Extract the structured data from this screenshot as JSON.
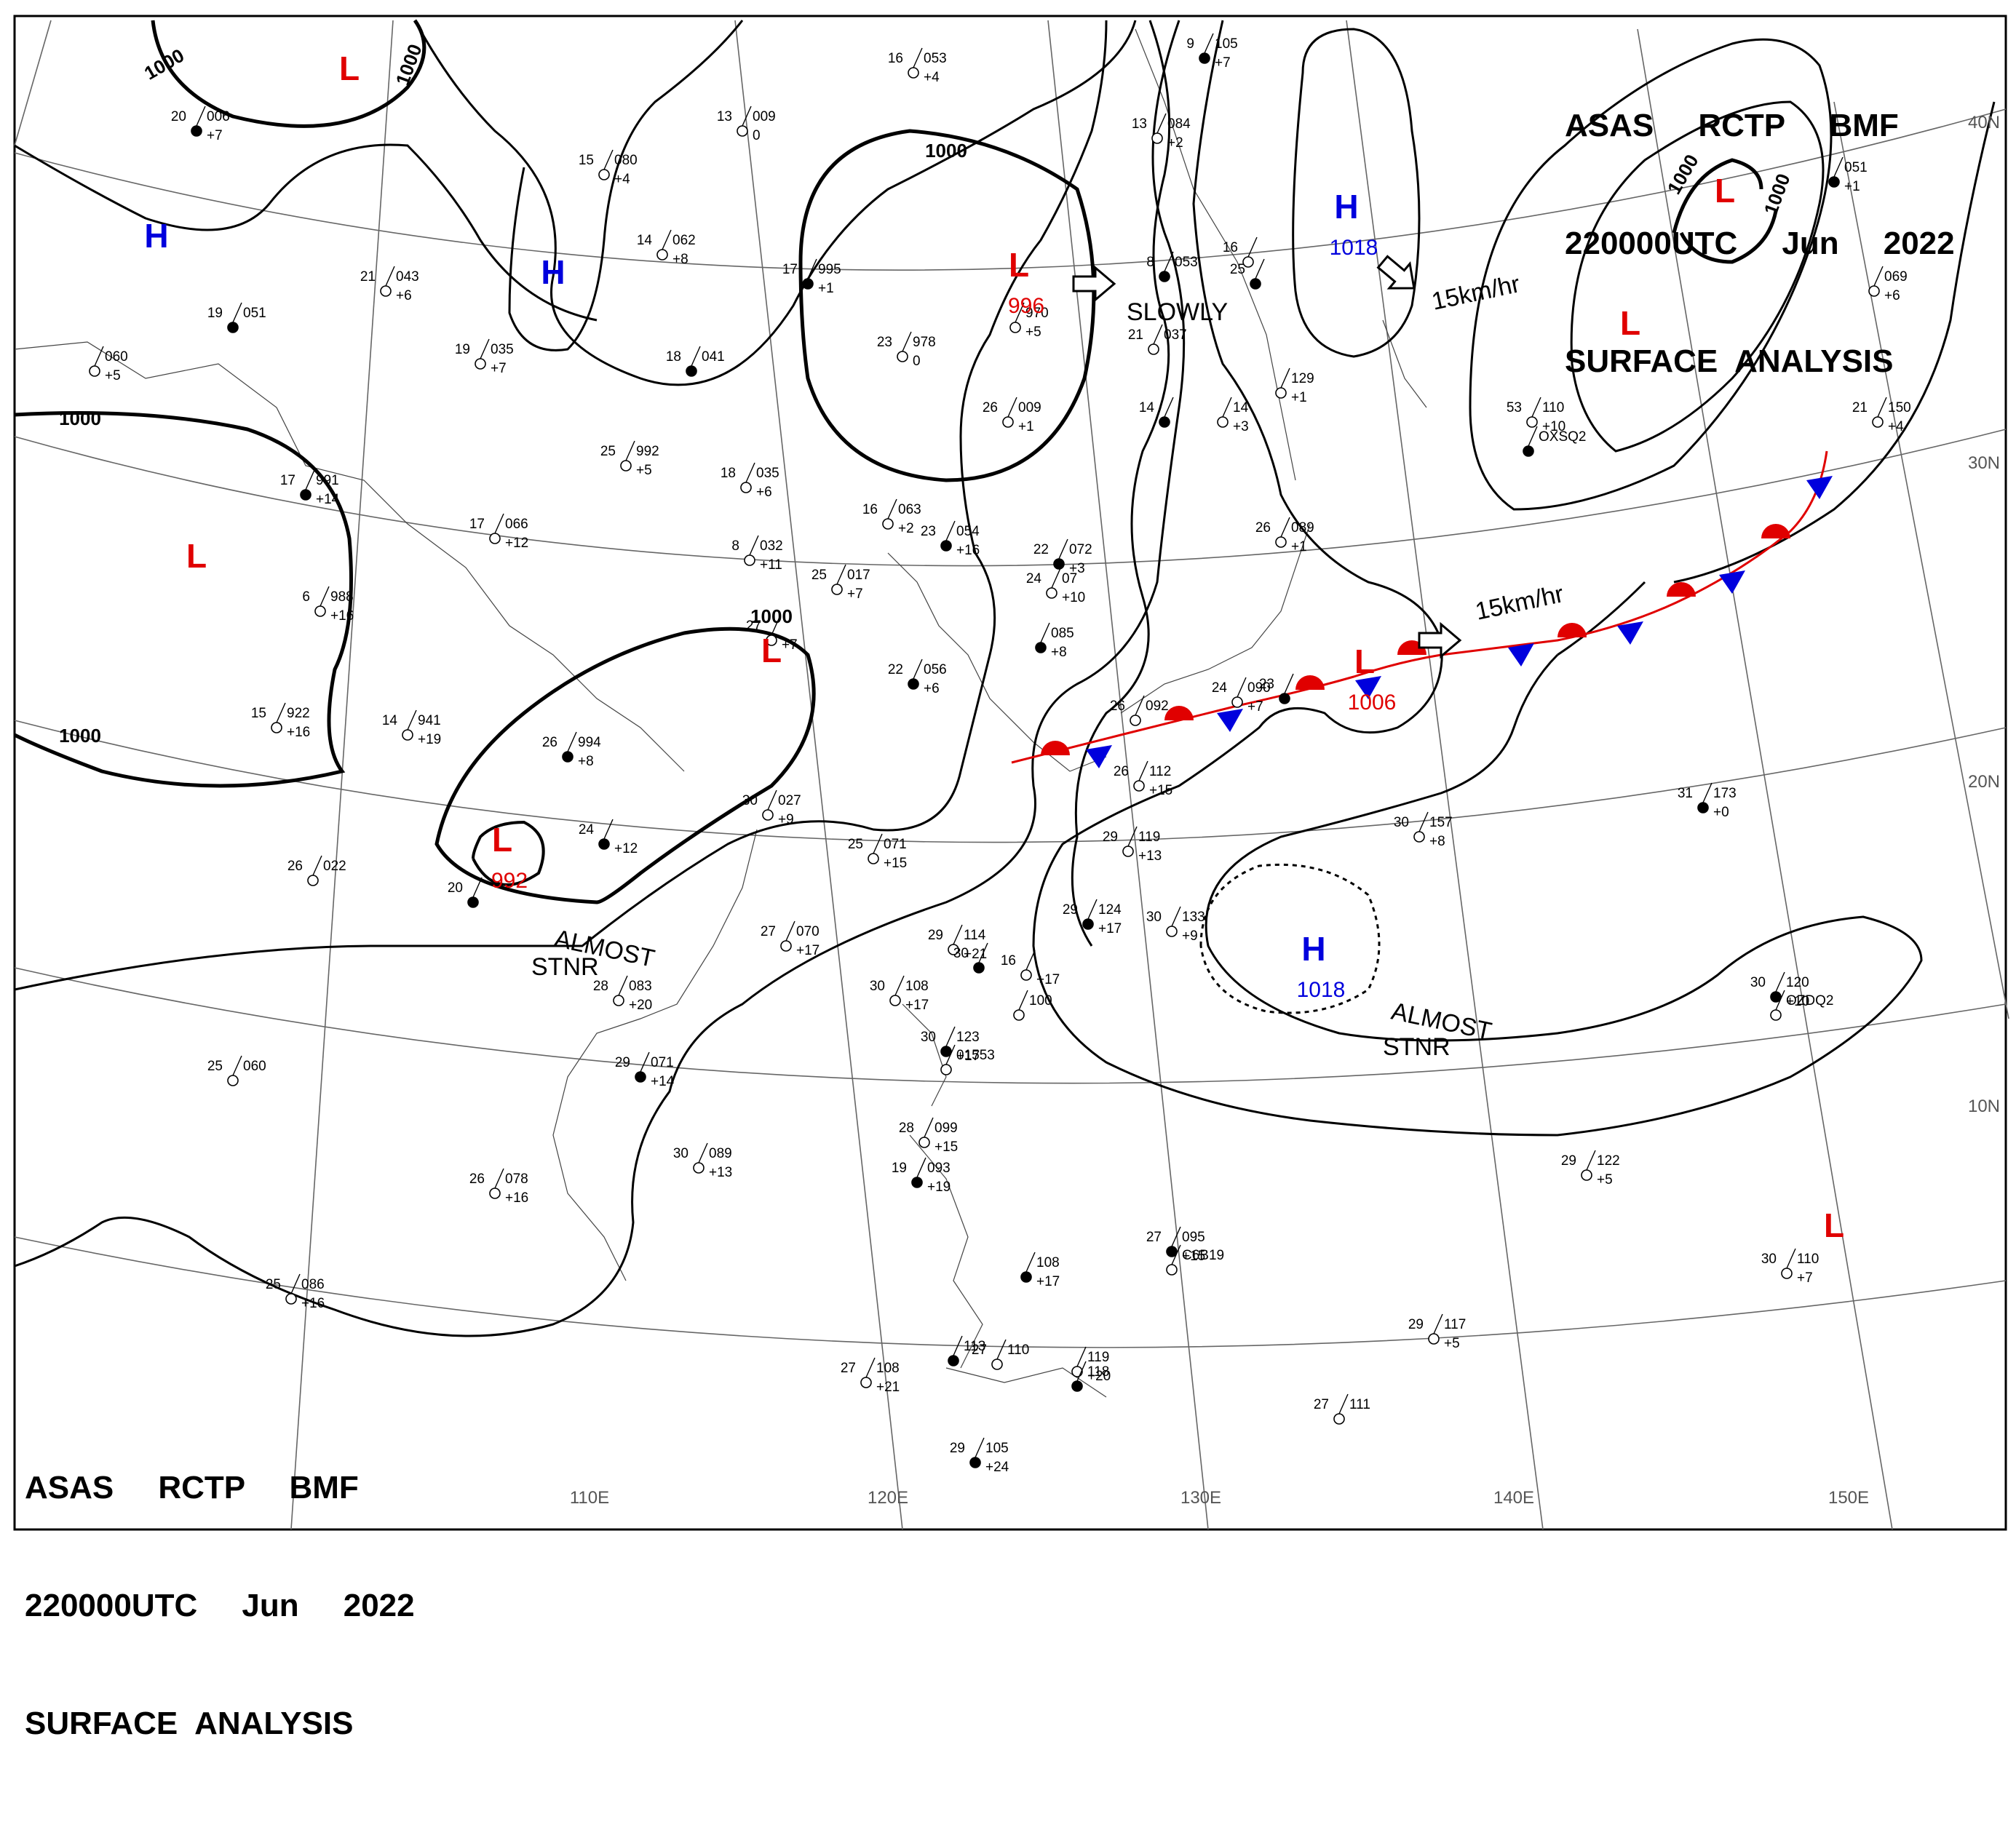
{
  "chart_title": {
    "line1": "ASAS     RCTP     BMF",
    "line2": "220000UTC     Jun     2022",
    "line3": "SURFACE  ANALYSIS"
  },
  "longitude_labels": [
    "110E",
    "120E",
    "130E",
    "140E",
    "150E"
  ],
  "latitude_labels": [
    "40N",
    "30N",
    "20N",
    "10N"
  ],
  "isobar_labels": [
    "1000",
    "1000",
    "1000",
    "1000",
    "1000",
    "1000",
    "1000",
    "1000"
  ],
  "pressure_centers": [
    {
      "type": "H",
      "value": ""
    },
    {
      "type": "H",
      "value": ""
    },
    {
      "type": "L",
      "value": ""
    },
    {
      "type": "L",
      "value": ""
    },
    {
      "type": "L",
      "value": "996"
    },
    {
      "type": "L",
      "value": ""
    },
    {
      "type": "L",
      "value": "992"
    },
    {
      "type": "H",
      "value": "1018"
    },
    {
      "type": "L",
      "value": ""
    },
    {
      "type": "L",
      "value": ""
    },
    {
      "type": "L",
      "value": "1006"
    },
    {
      "type": "H",
      "value": "1018"
    },
    {
      "type": "L",
      "value": ""
    }
  ],
  "annotations": [
    "SLOWLY",
    "15km/hr",
    "15km/hr",
    "ALMOST",
    "STNR",
    "ALMOST",
    "STNR"
  ],
  "front": {
    "type": "stationary",
    "colors": {
      "warm": "#e00000",
      "cold": "#0000dd"
    }
  },
  "colors": {
    "high": "#0000dd",
    "low": "#e00000",
    "isobar": "#000000",
    "grid": "#555555"
  },
  "stations": [
    {
      "t": "20",
      "p": "006",
      "tend": "+7"
    },
    {
      "t": "13",
      "p": "009",
      "tend": "0"
    },
    {
      "t": "16",
      "p": "053",
      "tend": "+4"
    },
    {
      "t": "9",
      "p": "105",
      "tend": "+7"
    },
    {
      "t": "15",
      "p": "080",
      "tend": "+4"
    },
    {
      "t": "14",
      "p": "062",
      "tend": "+8"
    },
    {
      "t": "17",
      "p": "995",
      "tend": "+1"
    },
    {
      "t": "13",
      "p": "084",
      "tend": "+2"
    },
    {
      "t": "21",
      "p": "043",
      "tend": "+6"
    },
    {
      "t": "19",
      "p": "051",
      "tend": ""
    },
    {
      "t": "",
      "p": "060",
      "tend": "+5"
    },
    {
      "t": "19",
      "p": "035",
      "tend": "+7"
    },
    {
      "t": "18",
      "p": "041",
      "tend": ""
    },
    {
      "t": "23",
      "p": "978",
      "tend": "0"
    },
    {
      "t": "",
      "p": "970",
      "tend": "+5"
    },
    {
      "t": "8",
      "p": "053",
      "tend": ""
    },
    {
      "t": "21",
      "p": "037",
      "tend": ""
    },
    {
      "t": "16",
      "p": "",
      "tend": ""
    },
    {
      "t": "25",
      "p": "",
      "tend": ""
    },
    {
      "t": "",
      "p": "129",
      "tend": "+1"
    },
    {
      "t": "25",
      "p": "992",
      "tend": "+5"
    },
    {
      "t": "17",
      "p": "991",
      "tend": "+14"
    },
    {
      "t": "18",
      "p": "035",
      "tend": "+6"
    },
    {
      "t": "26",
      "p": "009",
      "tend": "+1"
    },
    {
      "t": "14",
      "p": "",
      "tend": ""
    },
    {
      "t": "",
      "p": "14",
      "tend": "+3"
    },
    {
      "t": "53",
      "p": "110",
      "tend": "+10"
    },
    {
      "t": "",
      "p": "OXSQ2",
      "tend": ""
    },
    {
      "t": "21",
      "p": "150",
      "tend": "+4"
    },
    {
      "t": "",
      "p": "069",
      "tend": "+6"
    },
    {
      "t": "",
      "p": "051",
      "tend": "+1"
    },
    {
      "t": "17",
      "p": "066",
      "tend": "+12"
    },
    {
      "t": "16",
      "p": "063",
      "tend": "+2"
    },
    {
      "t": "23",
      "p": "054",
      "tend": "+16"
    },
    {
      "t": "8",
      "p": "032",
      "tend": "+11"
    },
    {
      "t": "25",
      "p": "017",
      "tend": "+7"
    },
    {
      "t": "22",
      "p": "072",
      "tend": "+3"
    },
    {
      "t": "24",
      "p": "07",
      "tend": "+10"
    },
    {
      "t": "26",
      "p": "089",
      "tend": "+1"
    },
    {
      "t": "",
      "p": "085",
      "tend": "+8"
    },
    {
      "t": "6",
      "p": "988",
      "tend": "+16"
    },
    {
      "t": "27",
      "p": "",
      "tend": "+7"
    },
    {
      "t": "22",
      "p": "056",
      "tend": "+6"
    },
    {
      "t": "15",
      "p": "922",
      "tend": "+16"
    },
    {
      "t": "14",
      "p": "941",
      "tend": "+19"
    },
    {
      "t": "26",
      "p": "994",
      "tend": "+8"
    },
    {
      "t": "26",
      "p": "092",
      "tend": ""
    },
    {
      "t": "24",
      "p": "090",
      "tend": "+7"
    },
    {
      "t": "23",
      "p": "",
      "tend": ""
    },
    {
      "t": "26",
      "p": "112",
      "tend": "+15"
    },
    {
      "t": "30",
      "p": "027",
      "tend": "+9"
    },
    {
      "t": "24",
      "p": "",
      "tend": "+12"
    },
    {
      "t": "25",
      "p": "071",
      "tend": "+15"
    },
    {
      "t": "26",
      "p": "022",
      "tend": ""
    },
    {
      "t": "20",
      "p": "",
      "tend": ""
    },
    {
      "t": "29",
      "p": "119",
      "tend": "+13"
    },
    {
      "t": "30",
      "p": "157",
      "tend": "+8"
    },
    {
      "t": "31",
      "p": "173",
      "tend": "+0"
    },
    {
      "t": "27",
      "p": "070",
      "tend": "+17"
    },
    {
      "t": "29",
      "p": "114",
      "tend": "+21"
    },
    {
      "t": "29",
      "p": "124",
      "tend": "+17"
    },
    {
      "t": "30",
      "p": "133",
      "tend": "+9"
    },
    {
      "t": "16",
      "p": "",
      "tend": "+17"
    },
    {
      "t": "30",
      "p": "",
      "tend": ""
    },
    {
      "t": "28",
      "p": "083",
      "tend": "+20"
    },
    {
      "t": "30",
      "p": "108",
      "tend": "+17"
    },
    {
      "t": "30",
      "p": "123",
      "tend": "+17"
    },
    {
      "t": "",
      "p": "01553",
      "tend": ""
    },
    {
      "t": "",
      "p": "100",
      "tend": ""
    },
    {
      "t": "30",
      "p": "120",
      "tend": "+10"
    },
    {
      "t": "",
      "p": "OZDQ2",
      "tend": ""
    },
    {
      "t": "25",
      "p": "060",
      "tend": ""
    },
    {
      "t": "29",
      "p": "071",
      "tend": "+14"
    },
    {
      "t": "28",
      "p": "099",
      "tend": "+15"
    },
    {
      "t": "30",
      "p": "089",
      "tend": "+13"
    },
    {
      "t": "19",
      "p": "093",
      "tend": "+19"
    },
    {
      "t": "29",
      "p": "122",
      "tend": "+5"
    },
    {
      "t": "26",
      "p": "078",
      "tend": "+16"
    },
    {
      "t": "27",
      "p": "095",
      "tend": "+15"
    },
    {
      "t": "",
      "p": "C6B19",
      "tend": ""
    },
    {
      "t": "25",
      "p": "086",
      "tend": "+16"
    },
    {
      "t": "",
      "p": "108",
      "tend": "+17"
    },
    {
      "t": "30",
      "p": "110",
      "tend": "+7"
    },
    {
      "t": "29",
      "p": "117",
      "tend": "+5"
    },
    {
      "t": "",
      "p": "113",
      "tend": ""
    },
    {
      "t": "27",
      "p": "110",
      "tend": ""
    },
    {
      "t": "",
      "p": "119",
      "tend": "+20"
    },
    {
      "t": "",
      "p": "118",
      "tend": ""
    },
    {
      "t": "27",
      "p": "108",
      "tend": "+21"
    },
    {
      "t": "27",
      "p": "111",
      "tend": ""
    },
    {
      "t": "29",
      "p": "105",
      "tend": "+24"
    }
  ]
}
